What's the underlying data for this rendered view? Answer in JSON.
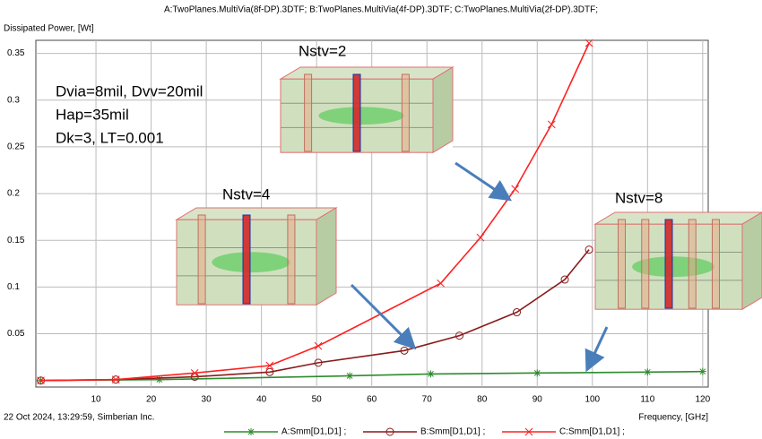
{
  "chart_data": {
    "type": "line",
    "title": "A:TwoPlanes.MultiVia(8f-DP).3DTF; B:TwoPlanes.MultiVia(4f-DP).3DTF; C:TwoPlanes.MultiVia(2f-DP).3DTF;",
    "y_label": "Dissipated Power, [Wt]",
    "x_label": "Frequency, [GHz]",
    "footer": "22 Oct 2024, 13:29:59, Simberian Inc.",
    "annotations": [
      "Dvia=8mil, Dvv=20mil",
      "Hap=35mil",
      "Dk=3, LT=0.001",
      "Nstv=2",
      "Nstv=4",
      "Nstv=8"
    ],
    "xlim": [
      -0.9,
      121
    ],
    "xticks": [
      10,
      20,
      30,
      40,
      50,
      60,
      70,
      80,
      90,
      100,
      110,
      120
    ],
    "ylim": [
      -0.007,
      0.364
    ],
    "yticks": [
      0.05,
      0.1,
      0.15,
      0.2,
      0.25,
      0.3,
      0.35
    ],
    "grid": true,
    "series": [
      {
        "name": "A:Smm[D1,D1] ;",
        "color": "#2e8b2e",
        "marker": "asterisk",
        "x": [
          0,
          21.5,
          56,
          70.7,
          90,
          110,
          120
        ],
        "values": [
          0,
          0.001,
          0.005,
          0.007,
          0.008,
          0.009,
          0.0096
        ]
      },
      {
        "name": "B:Smm[D1,D1] ;",
        "color": "#8b1a1a",
        "marker": "circle",
        "x": [
          0,
          13.6,
          27.9,
          41.5,
          50.3,
          65.9,
          75.9,
          86.3,
          95,
          99.4
        ],
        "values": [
          0,
          0.001,
          0.004,
          0.009,
          0.019,
          0.032,
          0.048,
          0.073,
          0.108,
          0.14
        ]
      },
      {
        "name": "C:Smm[D1,D1] ;",
        "color": "#ff2020",
        "marker": "x",
        "x": [
          0,
          13.6,
          27.9,
          41.5,
          50.3,
          72.5,
          79.7,
          86,
          92.6,
          99.4
        ],
        "values": [
          0,
          0.001,
          0.008,
          0.016,
          0.037,
          0.104,
          0.153,
          0.205,
          0.274,
          0.361
        ]
      }
    ]
  }
}
